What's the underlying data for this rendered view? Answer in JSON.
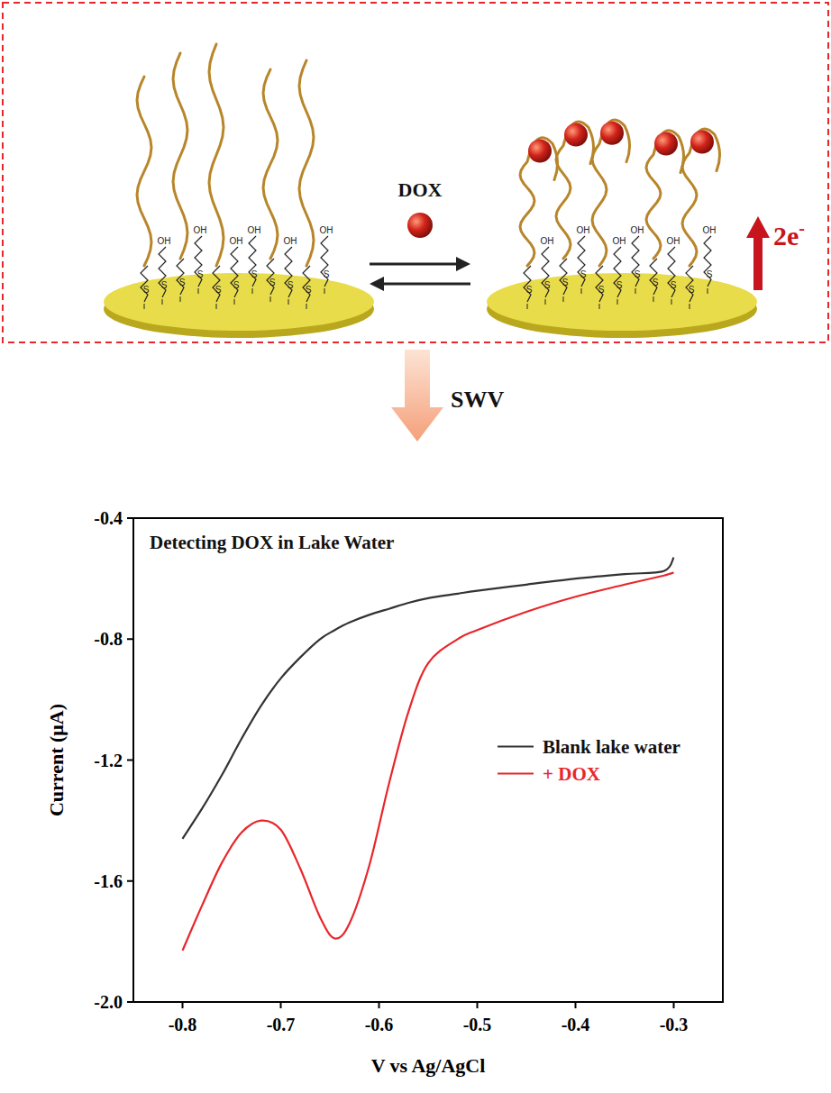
{
  "chart_data": {
    "type": "line",
    "title": "Detecting DOX in Lake Water",
    "x_label": "V vs Ag/AgCl",
    "y_label": "Current (μA)",
    "x": [
      -0.8,
      -0.78,
      -0.76,
      -0.74,
      -0.72,
      -0.7,
      -0.68,
      -0.66,
      -0.645,
      -0.63,
      -0.61,
      -0.59,
      -0.57,
      -0.55,
      -0.52,
      -0.5,
      -0.45,
      -0.4,
      -0.35,
      -0.31,
      -0.3
    ],
    "series": [
      {
        "name": "Blank lake water",
        "color": "#333333",
        "values": [
          -1.46,
          -1.36,
          -1.25,
          -1.13,
          -1.02,
          -0.93,
          -0.86,
          -0.8,
          -0.77,
          -0.745,
          -0.72,
          -0.7,
          -0.68,
          -0.665,
          -0.65,
          -0.64,
          -0.62,
          -0.6,
          -0.585,
          -0.575,
          -0.53
        ]
      },
      {
        "name": "+ DOX",
        "color": "#e8262b",
        "values": [
          -1.83,
          -1.68,
          -1.54,
          -1.44,
          -1.4,
          -1.43,
          -1.56,
          -1.72,
          -1.79,
          -1.74,
          -1.55,
          -1.28,
          -1.04,
          -0.88,
          -0.8,
          -0.77,
          -0.71,
          -0.66,
          -0.62,
          -0.59,
          -0.58
        ]
      }
    ],
    "xlim": [
      -0.85,
      -0.25
    ],
    "xticks": [
      -0.8,
      -0.7,
      -0.6,
      -0.5,
      -0.4,
      -0.3
    ],
    "ylim": [
      -2.0,
      -0.4
    ],
    "yticks": [
      {
        "value": -2.0,
        "label": "-2.0"
      },
      -1.6,
      -1.2,
      -0.8,
      -0.4
    ],
    "grid": false,
    "legend": "right"
  },
  "diagram": {
    "molecule_label": "DOX",
    "electron_label": "2e-",
    "method_label": "SWV",
    "hydroxyl_label": "OH",
    "thiol_label": "S"
  }
}
